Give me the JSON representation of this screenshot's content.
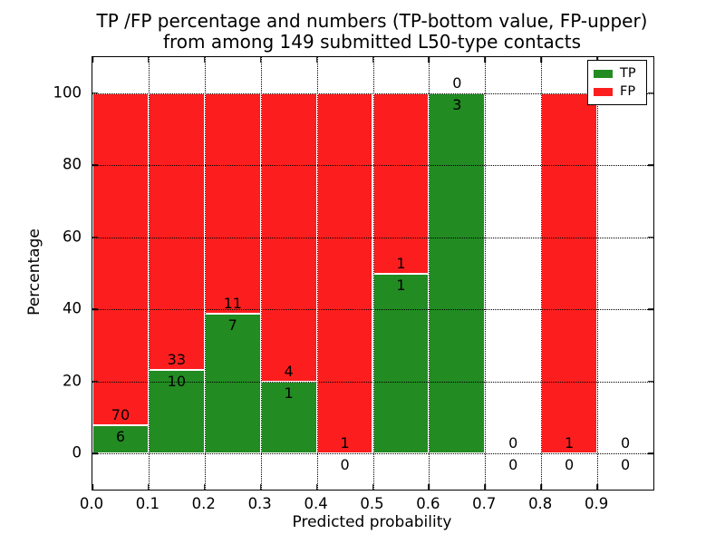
{
  "chart_data": {
    "type": "bar",
    "stacked": true,
    "normalized_to_percent": true,
    "title_line1": "TP /FP percentage and numbers (TP-bottom value, FP-upper)",
    "title_line2": "from among 149 submitted L50-type contacts",
    "xlabel": "Predicted probability",
    "ylabel": "Percentage",
    "total_submitted_contacts": 149,
    "bins": [
      [
        0.0,
        0.1
      ],
      [
        0.1,
        0.2
      ],
      [
        0.2,
        0.3
      ],
      [
        0.3,
        0.4
      ],
      [
        0.4,
        0.5
      ],
      [
        0.5,
        0.6
      ],
      [
        0.6,
        0.7
      ],
      [
        0.7,
        0.8
      ],
      [
        0.8,
        0.9
      ],
      [
        0.9,
        1.0
      ]
    ],
    "series": [
      {
        "name": "TP",
        "color": "#228b22",
        "values": [
          6,
          10,
          7,
          1,
          0,
          1,
          3,
          0,
          0,
          0
        ]
      },
      {
        "name": "FP",
        "color": "#fc1e1e",
        "values": [
          70,
          33,
          11,
          4,
          1,
          1,
          0,
          0,
          1,
          0
        ]
      }
    ],
    "tp_percent_by_bin": [
      7.9,
      23.3,
      38.9,
      20.0,
      0.0,
      50.0,
      100.0,
      0.0,
      0.0,
      0.0
    ],
    "x_ticks": [
      0.0,
      0.1,
      0.2,
      0.3,
      0.4,
      0.5,
      0.6,
      0.7,
      0.8,
      0.9
    ],
    "x_tick_labels": [
      "0.0",
      "0.1",
      "0.2",
      "0.3",
      "0.4",
      "0.5",
      "0.6",
      "0.7",
      "0.8",
      "0.9"
    ],
    "y_ticks": [
      0,
      20,
      40,
      60,
      80,
      100
    ],
    "y_tick_labels": [
      "0",
      "20",
      "40",
      "60",
      "80",
      "100"
    ],
    "xlim": [
      0.0,
      1.0
    ],
    "ylim": [
      -10,
      110
    ],
    "grid_style": "dotted",
    "legend_position": "upper-right"
  }
}
